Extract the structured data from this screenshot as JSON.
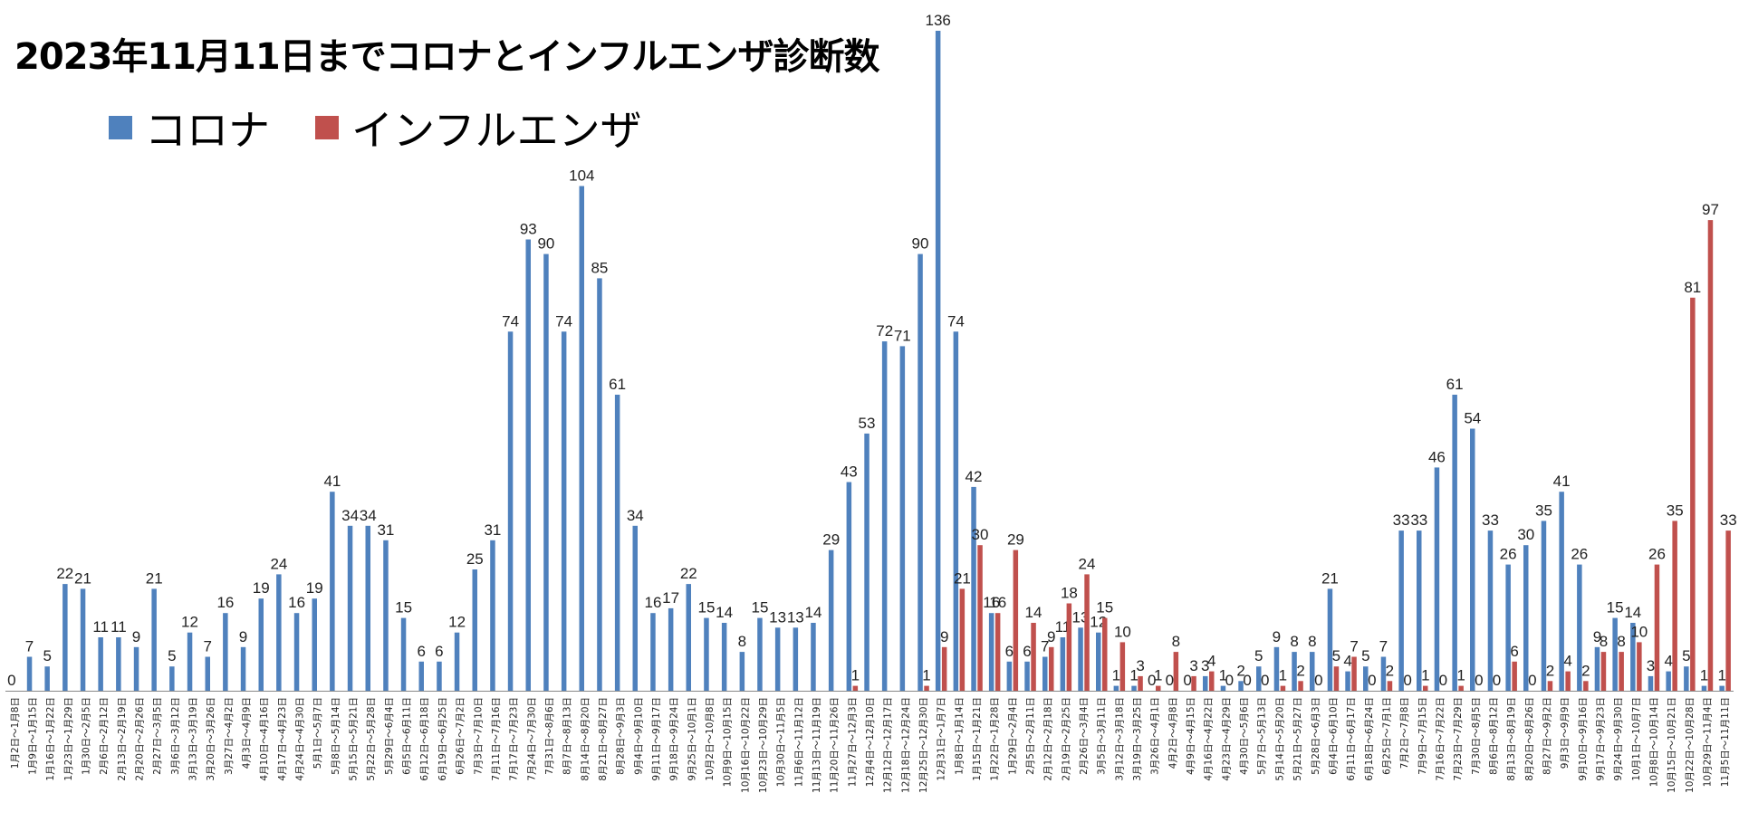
{
  "chart_data": {
    "type": "bar",
    "title": "2023年11月11日までコロナとインフルエンザ診断数",
    "xlabel": "",
    "ylabel": "",
    "ylim": [
      0,
      136
    ],
    "grid": false,
    "legend_position": "top-left",
    "categories": [
      "1月2日～1月8日",
      "1月9日～1月15日",
      "1月16日～1月22日",
      "1月23日～1月29日",
      "1月30日～2月5日",
      "2月6日～2月12日",
      "2月13日～2月19日",
      "2月20日～2月26日",
      "2月27日～3月5日",
      "3月6日～3月12日",
      "3月13日～3月19日",
      "3月20日～3月26日",
      "3月27日～4月2日",
      "4月3日～4月9日",
      "4月10日～4月16日",
      "4月17日～4月23日",
      "4月24日～4月30日",
      "5月1日～5月7日",
      "5月8日～5月14日",
      "5月15日～5月21日",
      "5月22日～5月28日",
      "5月29日～6月4日",
      "6月5日～6月11日",
      "6月12日～6月18日",
      "6月19日～6月25日",
      "6月26日～7月2日",
      "7月3日～7月10日",
      "7月11日～7月16日",
      "7月17日～7月23日",
      "7月24日～7月30日",
      "7月31日～8月6日",
      "8月7日～8月13日",
      "8月14日～8月20日",
      "8月21日～8月27日",
      "8月28日～9月3日",
      "9月4日～9月10日",
      "9月11日～9月17日",
      "9月18日～9月24日",
      "9月25日～10月1日",
      "10月2日～10月8日",
      "10月9日～10月15日",
      "10月16日～10月22日",
      "10月23日～10月29日",
      "10月30日～11月5日",
      "11月6日～11月12日",
      "11月13日～11月19日",
      "11月20日～11月26日",
      "11月27日～12月3日",
      "12月4日～12月10日",
      "12月12日～12月17日",
      "12月18日～12月24日",
      "12月25日～12月30日",
      "12月31日～1月7日",
      "1月8日～1月14日",
      "1月15日～1月21日",
      "1月22日～1月28日",
      "1月29日～2月4日",
      "2月5日～2月11日",
      "2月12日～2月18日",
      "2月19日～2月25日",
      "2月26日～3月4日",
      "3月5日～3月11日",
      "3月12日～3月18日",
      "3月19日～3月25日",
      "3月26日～4月1日",
      "4月2日～4月8日",
      "4月9日～4月15日",
      "4月16日～4月22日",
      "4月23日～4月29日",
      "4月30日～5月6日",
      "5月7日～5月13日",
      "5月14日～5月20日",
      "5月21日～5月27日",
      "5月28日～6月3日",
      "6月4日～6月10日",
      "6月11日～6月17日",
      "6月18日～6月24日",
      "6月25日～7月1日",
      "7月2日～7月8日",
      "7月9日～7月15日",
      "7月16日～7月22日",
      "7月23日～7月29日",
      "7月30日～8月5日",
      "8月6日～8月12日",
      "8月13日～8月19日",
      "8月20日～8月26日",
      "8月27日～9月2日",
      "9月3日～9月9日",
      "9月10日～9月16日",
      "9月17日～9月23日",
      "9月24日～9月30日",
      "10月1日～10月7日",
      "10月8日～10月14日",
      "10月15日～10月21日",
      "10月22日～10月28日",
      "10月29日～11月4日",
      "11月5日～11月11日"
    ],
    "series": [
      {
        "name": "コロナ",
        "color": "#4f81bd",
        "values": [
          0,
          7,
          5,
          22,
          21,
          11,
          11,
          9,
          21,
          5,
          12,
          7,
          16,
          9,
          19,
          24,
          16,
          19,
          41,
          34,
          34,
          31,
          15,
          6,
          6,
          12,
          25,
          31,
          74,
          93,
          90,
          74,
          104,
          85,
          61,
          34,
          16,
          17,
          22,
          15,
          14,
          8,
          15,
          13,
          13,
          14,
          29,
          43,
          53,
          72,
          71,
          90,
          136,
          74,
          42,
          16,
          6,
          6,
          7,
          11,
          13,
          12,
          1,
          1,
          0,
          0,
          0,
          3,
          1,
          2,
          5,
          9,
          8,
          8,
          21,
          4,
          5,
          7,
          33,
          33,
          46,
          61,
          54,
          33,
          26,
          30,
          35,
          41,
          26,
          9,
          15,
          14,
          3,
          4,
          5,
          1,
          1
        ]
      },
      {
        "name": "インフルエンザ",
        "color": "#c0504d",
        "values": [
          null,
          null,
          null,
          null,
          null,
          null,
          null,
          null,
          null,
          null,
          null,
          null,
          null,
          null,
          null,
          null,
          null,
          null,
          null,
          null,
          null,
          null,
          null,
          null,
          null,
          null,
          null,
          null,
          null,
          null,
          null,
          null,
          null,
          null,
          null,
          null,
          null,
          null,
          null,
          null,
          null,
          null,
          null,
          null,
          null,
          null,
          null,
          1,
          null,
          null,
          null,
          1,
          9,
          21,
          30,
          16,
          29,
          14,
          9,
          18,
          24,
          15,
          10,
          3,
          1,
          8,
          3,
          4,
          0,
          0,
          0,
          1,
          2,
          0,
          5,
          7,
          0,
          2,
          0,
          1,
          0,
          1,
          0,
          0,
          6,
          0,
          2,
          4,
          2,
          8,
          8,
          10,
          26,
          35,
          81,
          97,
          33
        ]
      }
    ]
  }
}
